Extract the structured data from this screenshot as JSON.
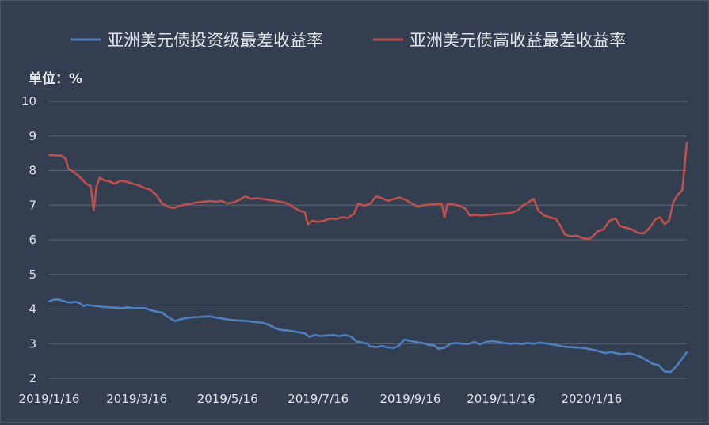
{
  "chart_data": {
    "type": "line",
    "unit_label": "单位：%",
    "ylim": [
      2,
      10
    ],
    "y_ticks": [
      "2",
      "3",
      "4",
      "5",
      "6",
      "7",
      "8",
      "9",
      "10"
    ],
    "x_tick_labels": [
      "2019/1/16",
      "2019/3/16",
      "2019/5/16",
      "2019/7/16",
      "2019/9/16",
      "2019/11/16",
      "2020/1/16"
    ],
    "x_tick_dates": [
      "2019-01-16",
      "2019-03-16",
      "2019-05-16",
      "2019-07-16",
      "2019-09-16",
      "2019-11-16",
      "2020-01-16"
    ],
    "xlim": [
      "2019-01-16",
      "2020-03-20"
    ],
    "grid": true,
    "legend_position": "top",
    "series": [
      {
        "name": "亚洲美元债投资级最差收益率",
        "color": "#4E80C2",
        "points": [
          [
            "2019-01-16",
            4.22
          ],
          [
            "2019-01-19",
            4.27
          ],
          [
            "2019-01-22",
            4.28
          ],
          [
            "2019-01-25",
            4.24
          ],
          [
            "2019-01-28",
            4.2
          ],
          [
            "2019-01-31",
            4.19
          ],
          [
            "2019-02-03",
            4.21
          ],
          [
            "2019-02-06",
            4.16
          ],
          [
            "2019-02-08",
            4.09
          ],
          [
            "2019-02-10",
            4.12
          ],
          [
            "2019-02-14",
            4.1
          ],
          [
            "2019-02-18",
            4.08
          ],
          [
            "2019-02-22",
            4.06
          ],
          [
            "2019-02-26",
            4.05
          ],
          [
            "2019-03-02",
            4.04
          ],
          [
            "2019-03-06",
            4.03
          ],
          [
            "2019-03-10",
            4.05
          ],
          [
            "2019-03-14",
            4.02
          ],
          [
            "2019-03-18",
            4.03
          ],
          [
            "2019-03-22",
            4.02
          ],
          [
            "2019-03-26",
            3.96
          ],
          [
            "2019-03-30",
            3.92
          ],
          [
            "2019-04-02",
            3.9
          ],
          [
            "2019-04-05",
            3.8
          ],
          [
            "2019-04-08",
            3.72
          ],
          [
            "2019-04-11",
            3.65
          ],
          [
            "2019-04-14",
            3.7
          ],
          [
            "2019-04-18",
            3.74
          ],
          [
            "2019-04-22",
            3.76
          ],
          [
            "2019-04-26",
            3.77
          ],
          [
            "2019-04-30",
            3.78
          ],
          [
            "2019-05-04",
            3.79
          ],
          [
            "2019-05-08",
            3.76
          ],
          [
            "2019-05-12",
            3.73
          ],
          [
            "2019-05-16",
            3.7
          ],
          [
            "2019-05-20",
            3.68
          ],
          [
            "2019-05-24",
            3.67
          ],
          [
            "2019-05-28",
            3.66
          ],
          [
            "2019-06-01",
            3.64
          ],
          [
            "2019-06-05",
            3.62
          ],
          [
            "2019-06-09",
            3.6
          ],
          [
            "2019-06-13",
            3.54
          ],
          [
            "2019-06-17",
            3.45
          ],
          [
            "2019-06-21",
            3.4
          ],
          [
            "2019-06-25",
            3.38
          ],
          [
            "2019-06-29",
            3.36
          ],
          [
            "2019-07-03",
            3.33
          ],
          [
            "2019-07-07",
            3.3
          ],
          [
            "2019-07-10",
            3.2
          ],
          [
            "2019-07-14",
            3.25
          ],
          [
            "2019-07-18",
            3.22
          ],
          [
            "2019-07-22",
            3.24
          ],
          [
            "2019-07-26",
            3.25
          ],
          [
            "2019-07-30",
            3.22
          ],
          [
            "2019-08-03",
            3.25
          ],
          [
            "2019-08-07",
            3.21
          ],
          [
            "2019-08-11",
            3.06
          ],
          [
            "2019-08-14",
            3.04
          ],
          [
            "2019-08-18",
            3.0
          ],
          [
            "2019-08-20",
            2.92
          ],
          [
            "2019-08-24",
            2.9
          ],
          [
            "2019-08-28",
            2.93
          ],
          [
            "2019-09-01",
            2.89
          ],
          [
            "2019-09-05",
            2.88
          ],
          [
            "2019-09-08",
            2.93
          ],
          [
            "2019-09-12",
            3.12
          ],
          [
            "2019-09-16",
            3.08
          ],
          [
            "2019-09-20",
            3.05
          ],
          [
            "2019-09-24",
            3.02
          ],
          [
            "2019-09-28",
            2.97
          ],
          [
            "2019-10-02",
            2.95
          ],
          [
            "2019-10-05",
            2.85
          ],
          [
            "2019-10-09",
            2.88
          ],
          [
            "2019-10-13",
            3.0
          ],
          [
            "2019-10-17",
            3.02
          ],
          [
            "2019-10-21",
            3.0
          ],
          [
            "2019-10-25",
            2.99
          ],
          [
            "2019-10-29",
            3.05
          ],
          [
            "2019-11-02",
            2.98
          ],
          [
            "2019-11-06",
            3.05
          ],
          [
            "2019-11-10",
            3.08
          ],
          [
            "2019-11-14",
            3.05
          ],
          [
            "2019-11-18",
            3.02
          ],
          [
            "2019-11-22",
            3.0
          ],
          [
            "2019-11-26",
            3.01
          ],
          [
            "2019-11-30",
            2.99
          ],
          [
            "2019-12-04",
            3.02
          ],
          [
            "2019-12-08",
            3.0
          ],
          [
            "2019-12-12",
            3.03
          ],
          [
            "2019-12-16",
            3.01
          ],
          [
            "2019-12-20",
            2.98
          ],
          [
            "2019-12-24",
            2.95
          ],
          [
            "2019-12-28",
            2.92
          ],
          [
            "2020-01-01",
            2.9
          ],
          [
            "2020-01-05",
            2.89
          ],
          [
            "2020-01-09",
            2.88
          ],
          [
            "2020-01-13",
            2.86
          ],
          [
            "2020-01-17",
            2.82
          ],
          [
            "2020-01-21",
            2.78
          ],
          [
            "2020-01-25",
            2.73
          ],
          [
            "2020-01-29",
            2.76
          ],
          [
            "2020-02-02",
            2.72
          ],
          [
            "2020-02-06",
            2.7
          ],
          [
            "2020-02-10",
            2.72
          ],
          [
            "2020-02-14",
            2.68
          ],
          [
            "2020-02-18",
            2.62
          ],
          [
            "2020-02-22",
            2.52
          ],
          [
            "2020-02-26",
            2.42
          ],
          [
            "2020-03-01",
            2.38
          ],
          [
            "2020-03-05",
            2.2
          ],
          [
            "2020-03-09",
            2.18
          ],
          [
            "2020-03-13",
            2.35
          ],
          [
            "2020-03-17",
            2.58
          ],
          [
            "2020-03-20",
            2.75
          ]
        ]
      },
      {
        "name": "亚洲美元债高收益最差收益率",
        "color": "#C0504D",
        "points": [
          [
            "2019-01-16",
            8.45
          ],
          [
            "2019-01-20",
            8.44
          ],
          [
            "2019-01-24",
            8.43
          ],
          [
            "2019-01-27",
            8.35
          ],
          [
            "2019-01-29",
            8.05
          ],
          [
            "2019-02-02",
            7.95
          ],
          [
            "2019-02-06",
            7.8
          ],
          [
            "2019-02-10",
            7.62
          ],
          [
            "2019-02-13",
            7.55
          ],
          [
            "2019-02-15",
            6.85
          ],
          [
            "2019-02-17",
            7.55
          ],
          [
            "2019-02-19",
            7.8
          ],
          [
            "2019-02-22",
            7.72
          ],
          [
            "2019-02-26",
            7.68
          ],
          [
            "2019-03-01",
            7.62
          ],
          [
            "2019-03-05",
            7.7
          ],
          [
            "2019-03-09",
            7.68
          ],
          [
            "2019-03-13",
            7.62
          ],
          [
            "2019-03-17",
            7.58
          ],
          [
            "2019-03-21",
            7.5
          ],
          [
            "2019-03-25",
            7.45
          ],
          [
            "2019-03-29",
            7.3
          ],
          [
            "2019-04-02",
            7.05
          ],
          [
            "2019-04-06",
            6.95
          ],
          [
            "2019-04-10",
            6.92
          ],
          [
            "2019-04-14",
            6.98
          ],
          [
            "2019-04-18",
            7.02
          ],
          [
            "2019-04-22",
            7.05
          ],
          [
            "2019-04-26",
            7.08
          ],
          [
            "2019-04-30",
            7.1
          ],
          [
            "2019-05-04",
            7.12
          ],
          [
            "2019-05-08",
            7.1
          ],
          [
            "2019-05-12",
            7.12
          ],
          [
            "2019-05-16",
            7.05
          ],
          [
            "2019-05-20",
            7.08
          ],
          [
            "2019-05-24",
            7.15
          ],
          [
            "2019-05-28",
            7.25
          ],
          [
            "2019-06-01",
            7.18
          ],
          [
            "2019-06-05",
            7.2
          ],
          [
            "2019-06-09",
            7.18
          ],
          [
            "2019-06-13",
            7.15
          ],
          [
            "2019-06-17",
            7.12
          ],
          [
            "2019-06-21",
            7.1
          ],
          [
            "2019-06-25",
            7.05
          ],
          [
            "2019-06-29",
            6.95
          ],
          [
            "2019-07-03",
            6.85
          ],
          [
            "2019-07-07",
            6.8
          ],
          [
            "2019-07-09",
            6.45
          ],
          [
            "2019-07-12",
            6.55
          ],
          [
            "2019-07-16",
            6.52
          ],
          [
            "2019-07-20",
            6.55
          ],
          [
            "2019-07-24",
            6.62
          ],
          [
            "2019-07-28",
            6.6
          ],
          [
            "2019-08-01",
            6.65
          ],
          [
            "2019-08-05",
            6.63
          ],
          [
            "2019-08-09",
            6.75
          ],
          [
            "2019-08-12",
            7.05
          ],
          [
            "2019-08-16",
            6.98
          ],
          [
            "2019-08-20",
            7.05
          ],
          [
            "2019-08-24",
            7.25
          ],
          [
            "2019-08-28",
            7.2
          ],
          [
            "2019-09-01",
            7.12
          ],
          [
            "2019-09-05",
            7.18
          ],
          [
            "2019-09-09",
            7.22
          ],
          [
            "2019-09-13",
            7.15
          ],
          [
            "2019-09-17",
            7.05
          ],
          [
            "2019-09-21",
            6.95
          ],
          [
            "2019-09-25",
            7.0
          ],
          [
            "2019-09-29",
            7.02
          ],
          [
            "2019-10-03",
            7.03
          ],
          [
            "2019-10-07",
            7.05
          ],
          [
            "2019-10-09",
            6.65
          ],
          [
            "2019-10-11",
            7.05
          ],
          [
            "2019-10-15",
            7.02
          ],
          [
            "2019-10-19",
            6.98
          ],
          [
            "2019-10-23",
            6.9
          ],
          [
            "2019-10-26",
            6.7
          ],
          [
            "2019-10-30",
            6.72
          ],
          [
            "2019-11-03",
            6.7
          ],
          [
            "2019-11-07",
            6.72
          ],
          [
            "2019-11-11",
            6.73
          ],
          [
            "2019-11-15",
            6.75
          ],
          [
            "2019-11-19",
            6.76
          ],
          [
            "2019-11-23",
            6.78
          ],
          [
            "2019-11-27",
            6.85
          ],
          [
            "2019-12-01",
            7.0
          ],
          [
            "2019-12-05",
            7.1
          ],
          [
            "2019-12-08",
            7.18
          ],
          [
            "2019-12-11",
            6.85
          ],
          [
            "2019-12-15",
            6.7
          ],
          [
            "2019-12-19",
            6.65
          ],
          [
            "2019-12-23",
            6.6
          ],
          [
            "2019-12-26",
            6.4
          ],
          [
            "2019-12-29",
            6.15
          ],
          [
            "2020-01-02",
            6.1
          ],
          [
            "2020-01-06",
            6.12
          ],
          [
            "2020-01-10",
            6.05
          ],
          [
            "2020-01-14",
            6.02
          ],
          [
            "2020-01-17",
            6.1
          ],
          [
            "2020-01-20",
            6.25
          ],
          [
            "2020-01-24",
            6.3
          ],
          [
            "2020-01-28",
            6.55
          ],
          [
            "2020-02-01",
            6.62
          ],
          [
            "2020-02-04",
            6.4
          ],
          [
            "2020-02-08",
            6.35
          ],
          [
            "2020-02-12",
            6.3
          ],
          [
            "2020-02-16",
            6.2
          ],
          [
            "2020-02-20",
            6.18
          ],
          [
            "2020-02-24",
            6.35
          ],
          [
            "2020-02-28",
            6.6
          ],
          [
            "2020-03-02",
            6.65
          ],
          [
            "2020-03-05",
            6.45
          ],
          [
            "2020-03-08",
            6.55
          ],
          [
            "2020-03-11",
            7.1
          ],
          [
            "2020-03-14",
            7.3
          ],
          [
            "2020-03-17",
            7.45
          ],
          [
            "2020-03-20",
            8.8
          ]
        ]
      }
    ]
  },
  "colors": {
    "background": "#333F50",
    "grid": "#5E6878",
    "text": "#E0E3E8"
  }
}
